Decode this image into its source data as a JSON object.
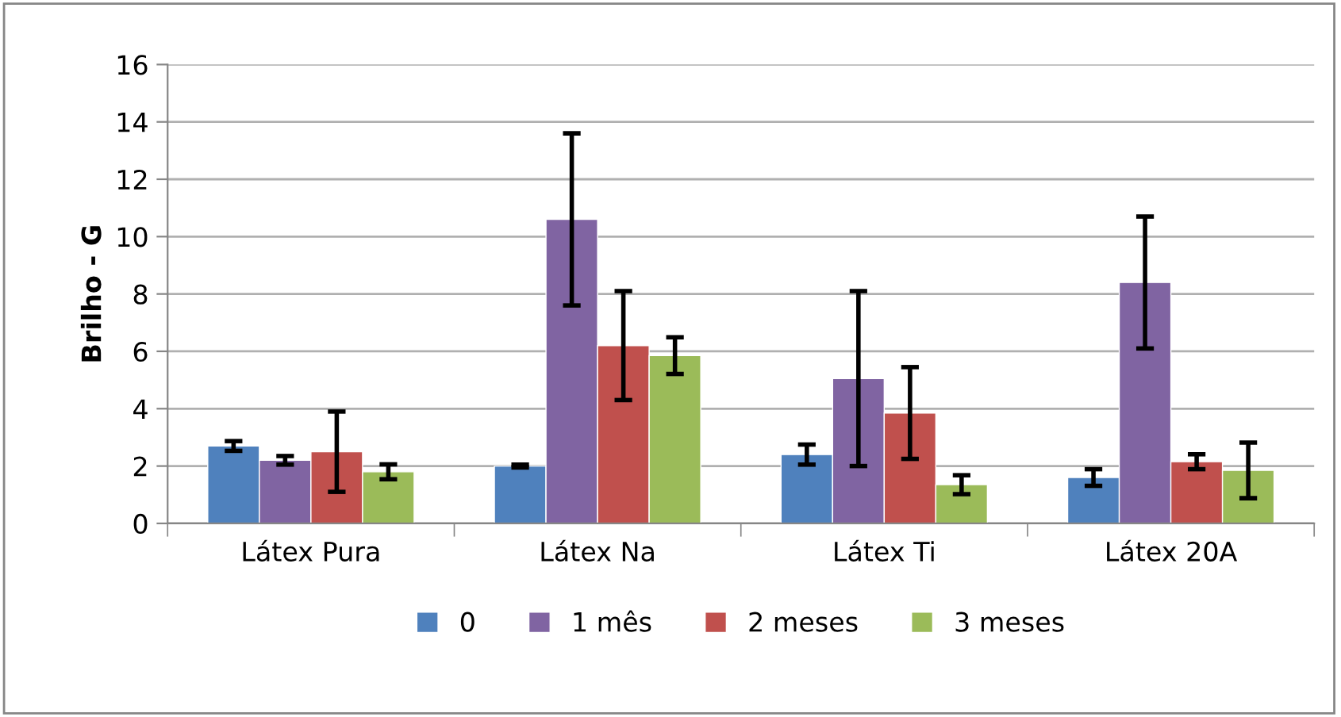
{
  "chart_data": {
    "type": "bar",
    "ylabel": "Brilho - G",
    "categories": [
      "Látex Pura",
      "Látex Na",
      "Látex Ti",
      "Látex 20A"
    ],
    "series": [
      {
        "name": "0",
        "color": "#4f81bd",
        "values": [
          2.7,
          2.0,
          2.4,
          1.6
        ],
        "errors": [
          0.17,
          0.05,
          0.35,
          0.29
        ]
      },
      {
        "name": "1 mês",
        "color": "#8064a2",
        "values": [
          2.2,
          10.6,
          5.05,
          8.4
        ],
        "errors": [
          0.15,
          3.0,
          3.05,
          2.3
        ]
      },
      {
        "name": "2 meses",
        "color": "#c0504d",
        "values": [
          2.5,
          6.2,
          3.85,
          2.15
        ],
        "errors": [
          1.4,
          1.9,
          1.6,
          0.26
        ]
      },
      {
        "name": "3 meses",
        "color": "#9bbb59",
        "values": [
          1.8,
          5.85,
          1.35,
          1.85
        ],
        "errors": [
          0.26,
          0.64,
          0.33,
          0.97
        ]
      }
    ],
    "ylim": [
      0,
      16
    ],
    "yticks": [
      0,
      2,
      4,
      6,
      8,
      10,
      12,
      14,
      16
    ],
    "grid": "y",
    "legend": "bottom"
  }
}
